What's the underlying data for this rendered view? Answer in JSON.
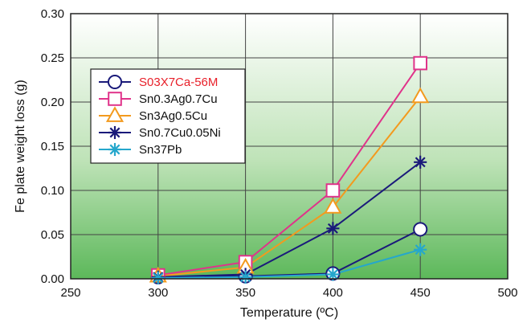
{
  "chart_data": {
    "type": "line",
    "title": "",
    "xlabel": "Temperature (ºC)",
    "ylabel": "Fe plate weight loss (g)",
    "xlim": [
      250,
      500
    ],
    "ylim": [
      0,
      0.3
    ],
    "xticks": [
      "250",
      "300",
      "350",
      "400",
      "450",
      "500"
    ],
    "yticks": [
      "0.00",
      "0.05",
      "0.10",
      "0.15",
      "0.20",
      "0.25",
      "0.30"
    ],
    "grid": true,
    "legend_position": "top-left",
    "x": [
      300,
      350,
      400,
      450
    ],
    "series": [
      {
        "name": "S03X7Ca-56M",
        "values": [
          0.002,
          0.003,
          0.006,
          0.056
        ],
        "color": "#1a1a7a",
        "marker": "circle",
        "label_color": "#e8202a"
      },
      {
        "name": "Sn0.3Ag0.7Cu",
        "values": [
          0.004,
          0.019,
          0.1,
          0.244
        ],
        "color": "#e0338a",
        "marker": "square",
        "label_color": "#111111"
      },
      {
        "name": "Sn3Ag0.5Cu",
        "values": [
          0.003,
          0.013,
          0.081,
          0.206
        ],
        "color": "#f39a1e",
        "marker": "triangle",
        "label_color": "#111111"
      },
      {
        "name": "Sn0.7Cu0.05Ni",
        "values": [
          0.002,
          0.005,
          0.057,
          0.132
        ],
        "color": "#1a1a7a",
        "marker": "star",
        "label_color": "#111111"
      },
      {
        "name": "Sn37Pb",
        "values": [
          0.001,
          0.002,
          0.005,
          0.033
        ],
        "color": "#25a7cc",
        "marker": "star",
        "label_color": "#111111"
      }
    ]
  }
}
